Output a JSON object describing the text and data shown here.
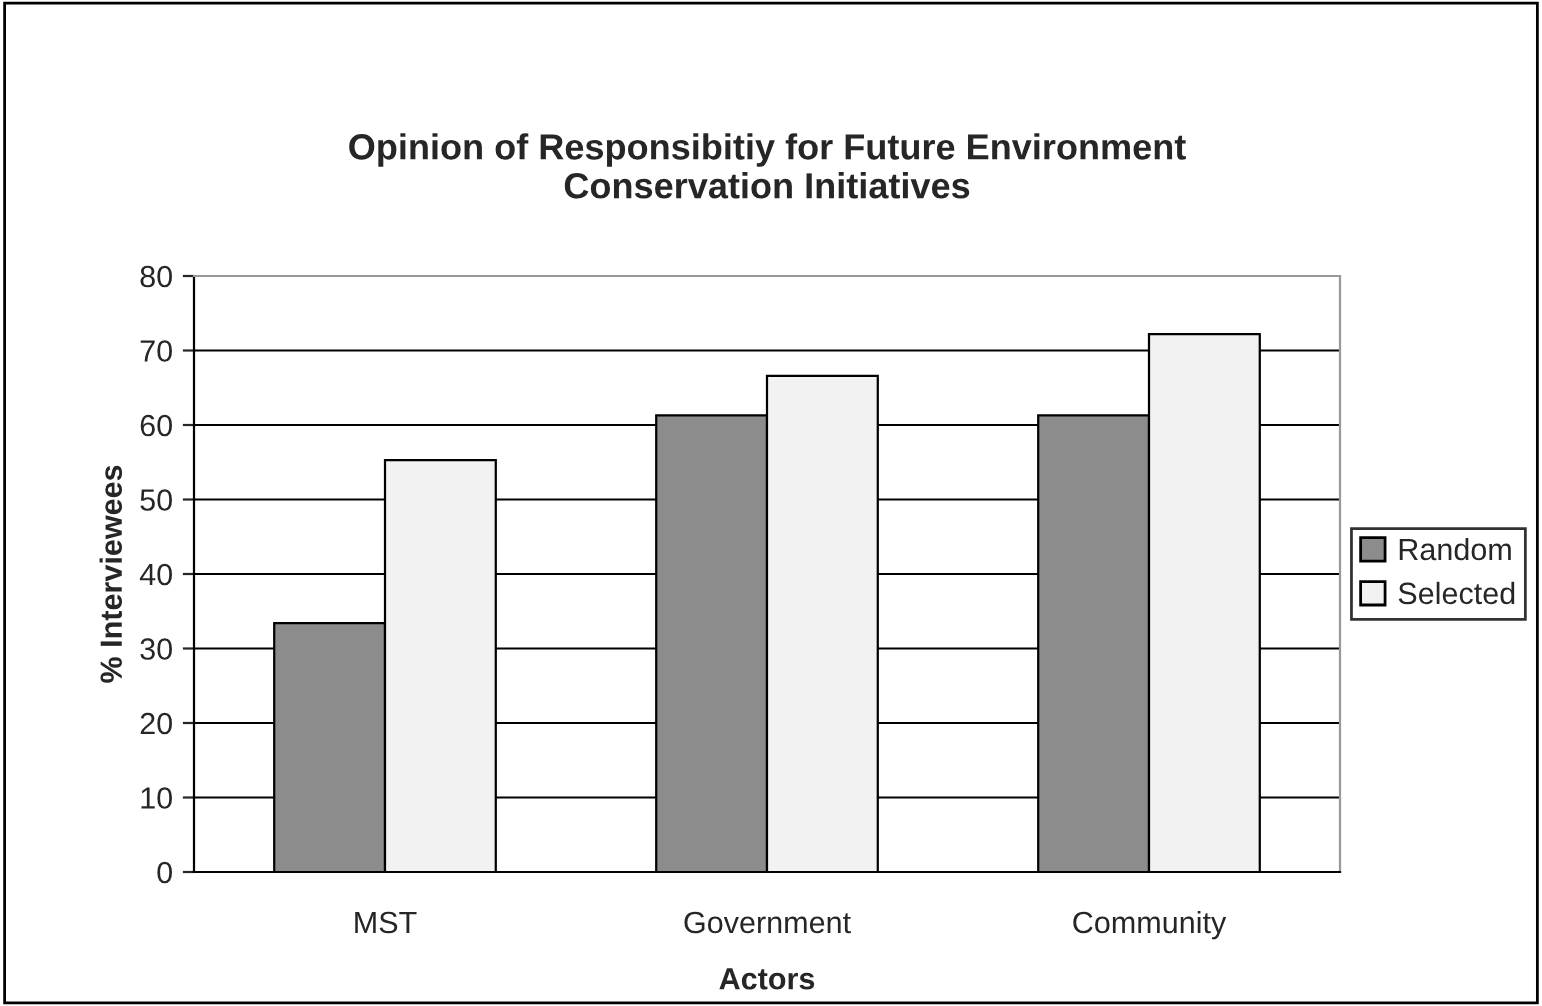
{
  "chart_data": {
    "type": "bar",
    "title": "Opinion of Responsibitiy for Future Environment\nConservation Initiatives",
    "xlabel": "Actors",
    "ylabel": "% Interviewees",
    "categories": [
      "MST",
      "Government",
      "Community"
    ],
    "series": [
      {
        "name": "Random",
        "color": "#8c8c8c",
        "values": [
          33.4,
          61.3,
          61.3
        ]
      },
      {
        "name": "Selected",
        "color": "#f2f2f2",
        "values": [
          55.3,
          66.6,
          72.2
        ]
      }
    ],
    "ylim": [
      0,
      80
    ],
    "yticks": [
      0,
      10,
      20,
      30,
      40,
      50,
      60,
      70,
      80
    ],
    "grid": "y",
    "legend": "right"
  }
}
